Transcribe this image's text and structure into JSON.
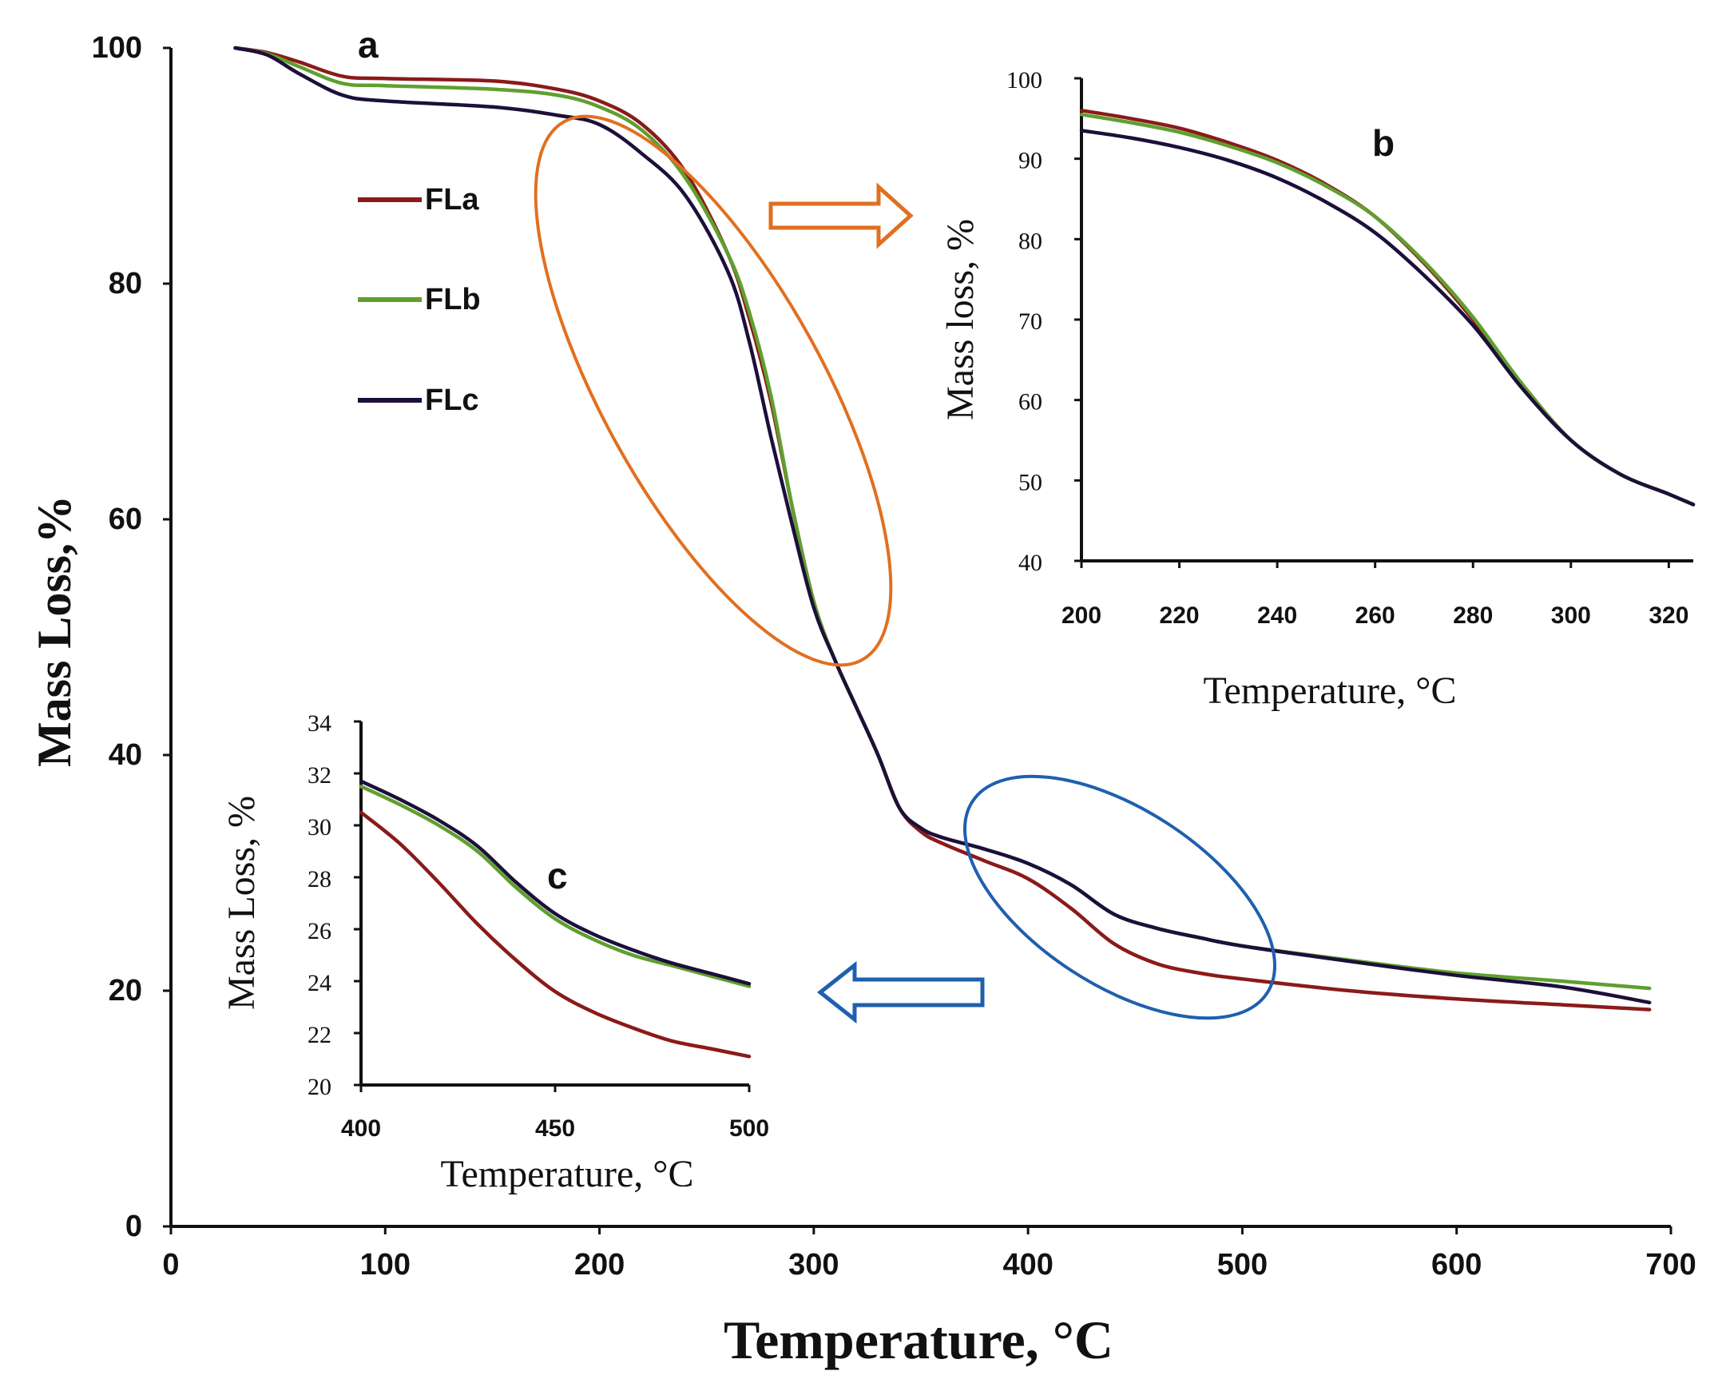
{
  "chart_data": [
    {
      "id": "a",
      "type": "line",
      "panel_label": "a",
      "xlabel": "Temperature, °C",
      "ylabel": "Mass Loss,%",
      "xlim": [
        0,
        700
      ],
      "ylim": [
        0,
        100
      ],
      "xticks": [
        0,
        100,
        200,
        300,
        400,
        500,
        600,
        700
      ],
      "yticks": [
        0,
        20,
        40,
        60,
        80,
        100
      ],
      "legend_position": "upper-left",
      "series": [
        {
          "name": "FLa",
          "color": "#8b1a1a",
          "x": [
            30,
            45,
            60,
            80,
            100,
            150,
            180,
            200,
            220,
            240,
            260,
            270,
            280,
            290,
            300,
            310,
            320,
            330,
            340,
            350,
            360,
            380,
            400,
            420,
            440,
            460,
            480,
            500,
            550,
            600,
            650,
            690
          ],
          "y": [
            100,
            99.6,
            98.8,
            97.6,
            97.4,
            97.2,
            96.5,
            95.5,
            93.5,
            89.5,
            82.5,
            77.0,
            70.0,
            61.0,
            53.0,
            48.0,
            44.0,
            40.0,
            35.5,
            33.5,
            32.5,
            31.0,
            29.5,
            27.0,
            24.0,
            22.3,
            21.5,
            21.0,
            20.0,
            19.3,
            18.8,
            18.4
          ]
        },
        {
          "name": "FLb",
          "color": "#5f9f2f",
          "x": [
            30,
            45,
            60,
            80,
            100,
            150,
            180,
            200,
            220,
            240,
            260,
            270,
            280,
            290,
            300,
            310,
            320,
            330,
            340,
            350,
            360,
            380,
            400,
            420,
            440,
            460,
            480,
            500,
            550,
            600,
            650,
            690
          ],
          "y": [
            100,
            99.5,
            98.4,
            97.0,
            96.8,
            96.5,
            96.0,
            95.0,
            93.0,
            89.0,
            82.5,
            77.5,
            70.5,
            61.0,
            53.0,
            48.0,
            44.0,
            40.0,
            35.5,
            33.8,
            33.0,
            32.0,
            30.8,
            29.0,
            26.5,
            25.3,
            24.5,
            23.8,
            22.6,
            21.5,
            20.8,
            20.2
          ]
        },
        {
          "name": "FLc",
          "color": "#1d0f3a",
          "x": [
            30,
            45,
            60,
            80,
            100,
            150,
            180,
            200,
            220,
            240,
            260,
            270,
            280,
            290,
            300,
            310,
            320,
            330,
            340,
            350,
            360,
            380,
            400,
            420,
            440,
            460,
            480,
            500,
            550,
            600,
            650,
            690
          ],
          "y": [
            100,
            99.4,
            97.8,
            96.0,
            95.5,
            95.0,
            94.3,
            93.5,
            91.0,
            87.5,
            81.0,
            75.0,
            67.0,
            59.5,
            52.5,
            48.0,
            44.0,
            40.0,
            35.5,
            33.8,
            33.0,
            32.0,
            30.8,
            29.0,
            26.5,
            25.3,
            24.5,
            23.8,
            22.5,
            21.3,
            20.3,
            19.0
          ]
        }
      ]
    },
    {
      "id": "b",
      "type": "line",
      "panel_label": "b",
      "xlabel": "Temperature, °C",
      "ylabel": "Mass loss, %",
      "xlim": [
        200,
        325
      ],
      "ylim": [
        40,
        100
      ],
      "xticks": [
        200,
        220,
        240,
        260,
        280,
        300,
        320
      ],
      "yticks": [
        40,
        50,
        60,
        70,
        80,
        90,
        100
      ],
      "series": [
        {
          "name": "FLa",
          "color": "#8b1a1a",
          "x": [
            200,
            210,
            220,
            230,
            240,
            250,
            260,
            270,
            280,
            290,
            300,
            310,
            320,
            325
          ],
          "y": [
            96.0,
            95.0,
            93.8,
            92.0,
            89.8,
            86.8,
            82.8,
            77.0,
            70.0,
            62.0,
            55.0,
            50.8,
            48.3,
            47.0
          ]
        },
        {
          "name": "FLb",
          "color": "#5f9f2f",
          "x": [
            200,
            210,
            220,
            230,
            240,
            250,
            260,
            270,
            280,
            290,
            300,
            310,
            320,
            325
          ],
          "y": [
            95.5,
            94.5,
            93.3,
            91.6,
            89.5,
            86.6,
            82.8,
            77.2,
            70.3,
            62.0,
            55.0,
            50.8,
            48.3,
            47.0
          ]
        },
        {
          "name": "FLc",
          "color": "#1d0f3a",
          "x": [
            200,
            210,
            220,
            230,
            240,
            250,
            260,
            270,
            280,
            290,
            300,
            310,
            320,
            325
          ],
          "y": [
            93.5,
            92.6,
            91.4,
            89.8,
            87.6,
            84.6,
            80.8,
            75.5,
            69.3,
            61.5,
            55.0,
            50.8,
            48.3,
            47.0
          ]
        }
      ]
    },
    {
      "id": "c",
      "type": "line",
      "panel_label": "c",
      "xlabel": "Temperature, °C",
      "ylabel": "Mass Loss, %",
      "xlim": [
        400,
        500
      ],
      "ylim": [
        20,
        34
      ],
      "xticks": [
        400,
        450,
        500
      ],
      "yticks": [
        20,
        22,
        24,
        26,
        28,
        30,
        32,
        34
      ],
      "series": [
        {
          "name": "FLa",
          "color": "#8b1a1a",
          "x": [
            400,
            410,
            420,
            430,
            440,
            450,
            460,
            470,
            480,
            490,
            500
          ],
          "y": [
            30.5,
            29.3,
            27.8,
            26.2,
            24.8,
            23.6,
            22.8,
            22.2,
            21.7,
            21.4,
            21.1
          ]
        },
        {
          "name": "FLb",
          "color": "#5f9f2f",
          "x": [
            400,
            410,
            420,
            430,
            440,
            450,
            460,
            470,
            480,
            490,
            500
          ],
          "y": [
            31.5,
            30.8,
            30.0,
            29.0,
            27.6,
            26.4,
            25.6,
            25.0,
            24.6,
            24.2,
            23.8
          ]
        },
        {
          "name": "FLc",
          "color": "#1d0f3a",
          "x": [
            400,
            410,
            420,
            430,
            440,
            450,
            460,
            470,
            480,
            490,
            500
          ],
          "y": [
            31.7,
            31.0,
            30.2,
            29.2,
            27.8,
            26.6,
            25.8,
            25.2,
            24.7,
            24.3,
            23.9
          ]
        }
      ]
    }
  ]
}
